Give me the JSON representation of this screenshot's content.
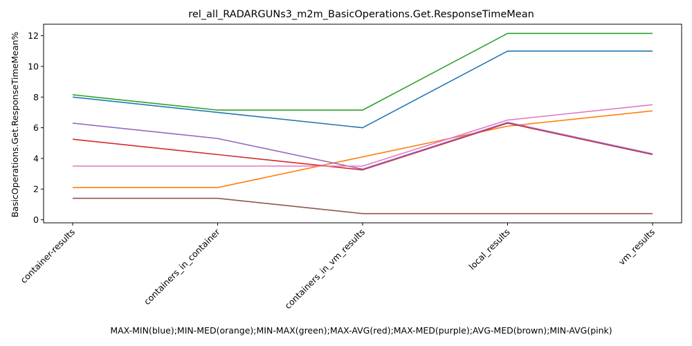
{
  "chart_data": {
    "type": "line",
    "title": "rel_all_RADARGUNs3_m2m_BasicOperations.Get.ResponseTimeMean",
    "ylabel": "BasicOperations.Get.ResponseTimeMean%",
    "xlabel": "MAX-MIN(blue);MIN-MED(orange);MIN-MAX(green);MAX-AVG(red);MAX-MED(purple);AVG-MED(brown);MIN-AVG(pink)",
    "categories": [
      "container-results",
      "containers_in_container",
      "containers_in_vm_results",
      "local_results",
      "vm_results"
    ],
    "ylim": [
      -0.2,
      12.75
    ],
    "yticks": [
      0,
      2,
      4,
      6,
      8,
      10,
      12
    ],
    "grid": false,
    "legend": "none",
    "series": [
      {
        "color": "#1f77b4",
        "values": [
          8.0,
          7.0,
          6.0,
          11.0,
          11.0
        ]
      },
      {
        "color": "#ff7f0e",
        "values": [
          2.1,
          2.1,
          4.1,
          6.1,
          7.1
        ]
      },
      {
        "color": "#2ca02c",
        "values": [
          8.15,
          7.15,
          7.15,
          12.15,
          12.15
        ]
      },
      {
        "color": "#d62728",
        "values": [
          5.25,
          4.25,
          3.25,
          6.3,
          4.25
        ]
      },
      {
        "color": "#9467bd",
        "values": [
          6.3,
          5.3,
          3.3,
          6.35,
          4.3
        ]
      },
      {
        "color": "#8c564b",
        "values": [
          1.4,
          1.4,
          0.4,
          0.4,
          0.4
        ]
      },
      {
        "color": "#e377c2",
        "values": [
          3.5,
          3.5,
          3.5,
          6.5,
          7.5
        ]
      }
    ]
  }
}
